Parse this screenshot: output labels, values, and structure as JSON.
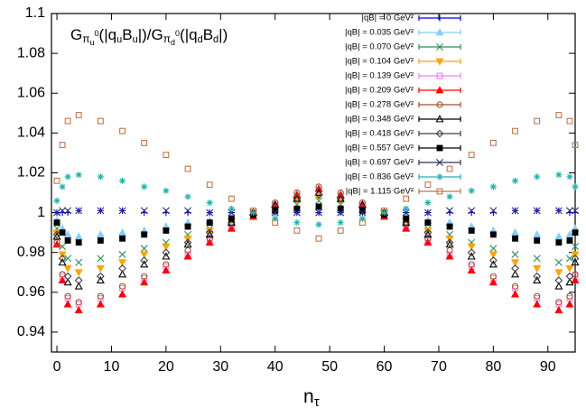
{
  "chart_data": {
    "type": "scatter",
    "title": [
      "G",
      "π",
      "u",
      "0",
      "(|q",
      "u",
      "B",
      "u",
      "|)/G",
      "π",
      "d",
      "0",
      "(|q",
      "d",
      "B",
      "d",
      "|)"
    ],
    "x_label": [
      "n",
      "τ"
    ],
    "x": [
      0,
      1,
      2,
      4,
      8,
      12,
      16,
      20,
      24,
      28,
      32,
      36,
      40,
      44,
      48,
      52,
      56,
      60,
      64,
      68,
      72,
      76,
      80,
      84,
      88,
      92,
      94,
      95
    ],
    "xlim": [
      -1,
      95
    ],
    "xticks": [
      0,
      10,
      20,
      30,
      40,
      50,
      60,
      70,
      80,
      90
    ],
    "ylim": [
      0.93,
      1.1
    ],
    "yticks": [
      0.94,
      0.96,
      0.98,
      1,
      1.02,
      1.04,
      1.06,
      1.08,
      1.1
    ],
    "legend": "upper right",
    "series": [
      {
        "name": "|qB| = 0 GeV²",
        "color": "#0000e0",
        "marker": "plus",
        "values": [
          1,
          1,
          1,
          1.001,
          1.001,
          1.001,
          1,
          1,
          1,
          1,
          1,
          1,
          1,
          1,
          1,
          1,
          1,
          1,
          1,
          1,
          1,
          1,
          1,
          1.001,
          1.001,
          1.001,
          1,
          1
        ]
      },
      {
        "name": "|qB| = 0.035 GeV²",
        "color": "#87cefa",
        "marker": "tri-filled",
        "values": [
          0.996,
          0.992,
          0.989,
          0.988,
          0.989,
          0.99,
          0.991,
          0.993,
          0.995,
          0.996,
          0.998,
          1,
          1.001,
          1.002,
          1.003,
          1.002,
          1.001,
          1,
          0.998,
          0.996,
          0.995,
          0.993,
          0.991,
          0.99,
          0.989,
          0.988,
          0.989,
          0.992
        ]
      },
      {
        "name": "|qB| = 0.070 GeV²",
        "color": "#2e8b57",
        "marker": "x",
        "values": [
          0.992,
          0.983,
          0.977,
          0.975,
          0.977,
          0.979,
          0.982,
          0.985,
          0.989,
          0.992,
          0.996,
          0.999,
          1.002,
          1.004,
          1.006,
          1.004,
          1.002,
          0.999,
          0.996,
          0.992,
          0.989,
          0.985,
          0.982,
          0.979,
          0.977,
          0.975,
          0.977,
          0.983
        ]
      },
      {
        "name": "|qB| = 0.104 GeV²",
        "color": "#ffa500",
        "marker": "tridown-filled",
        "values": [
          0.99,
          0.979,
          0.972,
          0.97,
          0.972,
          0.975,
          0.979,
          0.983,
          0.987,
          0.991,
          0.996,
          1,
          1.003,
          1.006,
          1.008,
          1.006,
          1.003,
          1,
          0.996,
          0.991,
          0.987,
          0.983,
          0.979,
          0.975,
          0.972,
          0.97,
          0.972,
          0.979
        ]
      },
      {
        "name": "|qB| = 0.139 GeV²",
        "color": "#ff77ff",
        "marker": "square-open",
        "values": [
          0.985,
          0.968,
          0.957,
          0.954,
          0.957,
          0.962,
          0.967,
          0.973,
          0.979,
          0.986,
          0.992,
          0.998,
          1.004,
          1.008,
          1.011,
          1.008,
          1.004,
          0.998,
          0.992,
          0.986,
          0.979,
          0.973,
          0.967,
          0.962,
          0.957,
          0.954,
          0.957,
          0.968
        ]
      },
      {
        "name": "|qB| = 0.209 GeV²",
        "color": "#ff0000",
        "marker": "tri-filled",
        "values": [
          0.984,
          0.966,
          0.954,
          0.951,
          0.954,
          0.959,
          0.965,
          0.971,
          0.978,
          0.985,
          0.992,
          0.998,
          1.004,
          1.009,
          1.012,
          1.009,
          1.004,
          0.998,
          0.992,
          0.985,
          0.978,
          0.971,
          0.965,
          0.959,
          0.954,
          0.951,
          0.954,
          0.966
        ]
      },
      {
        "name": "|qB| = 0.278 GeV²",
        "color": "#a0522d",
        "marker": "circle-open",
        "values": [
          0.985,
          0.969,
          0.958,
          0.955,
          0.958,
          0.963,
          0.968,
          0.974,
          0.981,
          0.987,
          0.994,
          1,
          1.005,
          1.01,
          1.013,
          1.01,
          1.005,
          1,
          0.994,
          0.987,
          0.981,
          0.974,
          0.968,
          0.963,
          0.958,
          0.955,
          0.958,
          0.969
        ]
      },
      {
        "name": "|qB| = 0.348 GeV²",
        "color": "#000000",
        "marker": "tri-open",
        "values": [
          0.988,
          0.975,
          0.965,
          0.963,
          0.966,
          0.969,
          0.974,
          0.978,
          0.984,
          0.989,
          0.995,
          1,
          1.004,
          1.007,
          1.01,
          1.007,
          1.004,
          1,
          0.995,
          0.989,
          0.984,
          0.978,
          0.974,
          0.969,
          0.966,
          0.963,
          0.965,
          0.975
        ]
      },
      {
        "name": "|qB| = 0.418 GeV²",
        "color": "#404040",
        "marker": "diamond-open",
        "values": [
          0.989,
          0.977,
          0.968,
          0.966,
          0.968,
          0.972,
          0.976,
          0.98,
          0.985,
          0.99,
          0.995,
          0.999,
          1.003,
          1.007,
          1.009,
          1.007,
          1.003,
          0.999,
          0.995,
          0.99,
          0.985,
          0.98,
          0.976,
          0.972,
          0.968,
          0.966,
          0.968,
          0.977
        ]
      },
      {
        "name": "|qB| = 0.557 GeV²",
        "color": "#000000",
        "marker": "square-filled",
        "values": [
          0.995,
          0.99,
          0.986,
          0.985,
          0.986,
          0.987,
          0.989,
          0.991,
          0.993,
          0.995,
          0.997,
          0.999,
          1.001,
          1.002,
          1.003,
          1.002,
          1.001,
          0.999,
          0.997,
          0.995,
          0.993,
          0.991,
          0.989,
          0.987,
          0.986,
          0.985,
          0.986,
          0.99
        ]
      },
      {
        "name": "|qB| = 0.697 GeV²",
        "color": "#2f2f5f",
        "marker": "x",
        "values": [
          1,
          1.001,
          1.001,
          1.001,
          1.001,
          1.001,
          1.001,
          1.001,
          1.001,
          1,
          1,
          1,
          1,
          1,
          1,
          1,
          1,
          1,
          1,
          1,
          1.001,
          1.001,
          1.001,
          1.001,
          1.001,
          1.001,
          1.001,
          1.001
        ]
      },
      {
        "name": "|qB| = 0.836 GeV²",
        "color": "#20b2aa",
        "marker": "star",
        "values": [
          1.006,
          1.013,
          1.018,
          1.019,
          1.018,
          1.016,
          1.013,
          1.011,
          1.008,
          1.005,
          1.002,
          1,
          0.997,
          0.995,
          0.994,
          0.995,
          0.997,
          1,
          1.002,
          1.005,
          1.008,
          1.011,
          1.013,
          1.016,
          1.018,
          1.019,
          1.018,
          1.013
        ]
      },
      {
        "name": "|qB| = 1.115 GeV²",
        "color": "#c0764a",
        "marker": "square-open",
        "values": [
          1.016,
          1.034,
          1.046,
          1.049,
          1.046,
          1.041,
          1.035,
          1.029,
          1.022,
          1.014,
          1.007,
          1.001,
          0.995,
          0.991,
          0.987,
          0.991,
          0.995,
          1.001,
          1.007,
          1.014,
          1.022,
          1.029,
          1.035,
          1.041,
          1.046,
          1.049,
          1.046,
          1.034
        ]
      }
    ]
  }
}
